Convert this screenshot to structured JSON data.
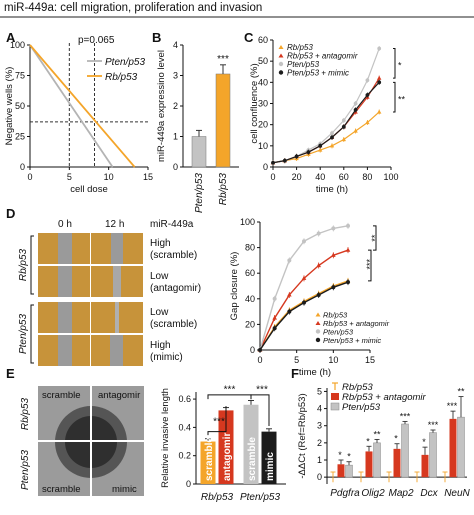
{
  "figure_title": "miR-449a: cell migration, proliferation and invasion",
  "panel_letters": {
    "a": "A",
    "b": "B",
    "c": "C",
    "d": "D",
    "e": "E",
    "f": "F"
  },
  "colors": {
    "orange": "#f4a52a",
    "red": "#d6381f",
    "gray": "#c3c3c3",
    "black": "#1c1c1c",
    "lightgray": "#d9d9d9"
  },
  "chart_data": [
    {
      "id": "A",
      "type": "line",
      "xlabel": "cell dose",
      "ylabel": "Negative wells (%)",
      "yticks": [
        0,
        25,
        50,
        75,
        100
      ],
      "ylim": [
        0,
        100
      ],
      "xticks": [
        0,
        5,
        10,
        15
      ],
      "xlim": [
        0,
        15
      ],
      "annotation": "p=0.065",
      "ref_line_y": 37,
      "ref_line_x": [
        5,
        8.2
      ],
      "legend": [
        "Pten/p53",
        "Rb/p53"
      ],
      "series": [
        {
          "name": "Pten/p53",
          "color": "#b4b4b4",
          "x": [
            0,
            10.5
          ],
          "y": [
            100,
            0
          ]
        },
        {
          "name": "Rb/p53",
          "color": "#f4a52a",
          "x": [
            0,
            13.3
          ],
          "y": [
            100,
            0
          ]
        }
      ]
    },
    {
      "id": "B",
      "type": "bar",
      "ylabel": "miR-449a expressino level",
      "yticks": [
        0,
        1,
        2,
        3,
        4
      ],
      "ylim": [
        0,
        4
      ],
      "categories": [
        "Pten/p53",
        "Rb/p53"
      ],
      "values": [
        1.0,
        3.05
      ],
      "errors": [
        0.2,
        0.3
      ],
      "colors": [
        "#c3c3c3",
        "#f4a52a"
      ],
      "sig": "***"
    },
    {
      "id": "C",
      "type": "line",
      "xlabel": "time (h)",
      "ylabel": "cell confluence (%)",
      "xticks": [
        0,
        20,
        40,
        60,
        80,
        100
      ],
      "xlim": [
        0,
        100
      ],
      "yticks": [
        0,
        10,
        20,
        30,
        40,
        50,
        60
      ],
      "ylim": [
        0,
        60
      ],
      "x": [
        0,
        10,
        20,
        30,
        40,
        50,
        60,
        70,
        80,
        90
      ],
      "sig": [
        "*",
        "**"
      ],
      "series": [
        {
          "name": "Rb/p53",
          "color": "#f4a52a",
          "values": [
            2,
            3,
            4,
            6,
            8,
            10,
            13,
            17,
            21,
            26
          ]
        },
        {
          "name": "Rb/p53 + antagomir",
          "color": "#d6381f",
          "values": [
            2,
            3,
            5,
            7,
            10,
            14,
            19,
            26,
            33,
            42
          ]
        },
        {
          "name": "Pten/p53",
          "color": "#c3c3c3",
          "values": [
            2,
            3,
            5,
            8,
            11,
            16,
            22,
            30,
            41,
            56
          ]
        },
        {
          "name": "Pten/p53 + mimic",
          "color": "#1c1c1c",
          "values": [
            2,
            3,
            5,
            7,
            10,
            14,
            19,
            27,
            34,
            40
          ]
        }
      ]
    },
    {
      "id": "D",
      "type": "line",
      "xlabel": "time (h)",
      "ylabel": "Gap closure (%)",
      "xticks": [
        0,
        5,
        10,
        15
      ],
      "xlim": [
        0,
        15
      ],
      "yticks": [
        0,
        20,
        40,
        60,
        80,
        100
      ],
      "ylim": [
        0,
        100
      ],
      "x": [
        0,
        2,
        4,
        6,
        8,
        10,
        12
      ],
      "sig": [
        "**",
        "***"
      ],
      "series": [
        {
          "name": "Rb/p53",
          "color": "#f4a52a",
          "values": [
            0,
            18,
            31,
            38,
            44,
            50,
            54
          ]
        },
        {
          "name": "Rb/p53 + antagomir",
          "color": "#d6381f",
          "values": [
            0,
            25,
            43,
            56,
            66,
            74,
            78
          ]
        },
        {
          "name": "Pten/p53",
          "color": "#c3c3c3",
          "values": [
            0,
            40,
            70,
            85,
            91,
            95,
            97
          ]
        },
        {
          "name": "Pten/p53 + mimic",
          "color": "#1c1c1c",
          "values": [
            0,
            17,
            30,
            37,
            43,
            49,
            53
          ]
        }
      ]
    },
    {
      "id": "E",
      "type": "bar",
      "ylabel": "Relative invasive length",
      "yticks": [
        0,
        0.2,
        0.4,
        0.6
      ],
      "ylim": [
        0,
        0.65
      ],
      "groups": [
        "Rb/p53",
        "Pten/p53"
      ],
      "bars": [
        {
          "label": "scramble",
          "value": 0.3,
          "error": 0.02,
          "color": "#f4a52a"
        },
        {
          "label": "antagomir",
          "value": 0.52,
          "error": 0.02,
          "color": "#d6381f"
        },
        {
          "label": "scramble",
          "value": 0.56,
          "error": 0.03,
          "color": "#c3c3c3"
        },
        {
          "label": "mimic",
          "value": 0.37,
          "error": 0.02,
          "color": "#1c1c1c"
        }
      ],
      "sig": [
        "***",
        "***",
        "***"
      ]
    },
    {
      "id": "F",
      "type": "bar",
      "ylabel": "-ΔΔCt (Ref=Rb/p53)",
      "yticks": [
        0,
        1,
        2,
        3,
        4,
        5
      ],
      "ylim": [
        -0.4,
        5.2
      ],
      "categories": [
        "Pdgfra",
        "Olig2",
        "Map2",
        "Dcx",
        "NeuN"
      ],
      "series": [
        {
          "name": "Rb/p53",
          "color": "#f4a52a",
          "values": [
            0,
            0,
            0,
            0,
            0
          ],
          "errors": [
            0.3,
            0.3,
            0.3,
            0.3,
            0.3
          ]
        },
        {
          "name": "Rb/p53 + antagomir",
          "color": "#d6381f",
          "values": [
            0.75,
            1.5,
            1.65,
            1.3,
            3.4
          ],
          "errors": [
            0.25,
            0.3,
            0.3,
            0.45,
            0.45
          ]
        },
        {
          "name": "Pten/p53",
          "color": "#c3c3c3",
          "values": [
            0.7,
            2.0,
            3.1,
            2.6,
            3.5
          ],
          "errors": [
            0.2,
            0.2,
            0.15,
            0.15,
            1.2
          ]
        }
      ],
      "sig_antagomir": [
        "*",
        "*",
        "*",
        "*",
        "***"
      ],
      "sig_pten": [
        "*",
        "**",
        "***",
        "***",
        "**"
      ]
    }
  ],
  "panelD": {
    "col_labels": [
      "0 h",
      "12 h",
      "miR-449a"
    ],
    "row_labels": [
      "High\n(scramble)",
      "Low\n(antagomir)",
      "Low\n(scramble)",
      "High\n(mimic)"
    ],
    "group_labels": [
      "Rb/p53",
      "Pten/p53"
    ]
  },
  "panelE": {
    "quad_labels": [
      "scramble",
      "antagomir",
      "scramble",
      "mimic"
    ],
    "group_labels": [
      "Rb/p53",
      "Pten/p53"
    ]
  }
}
